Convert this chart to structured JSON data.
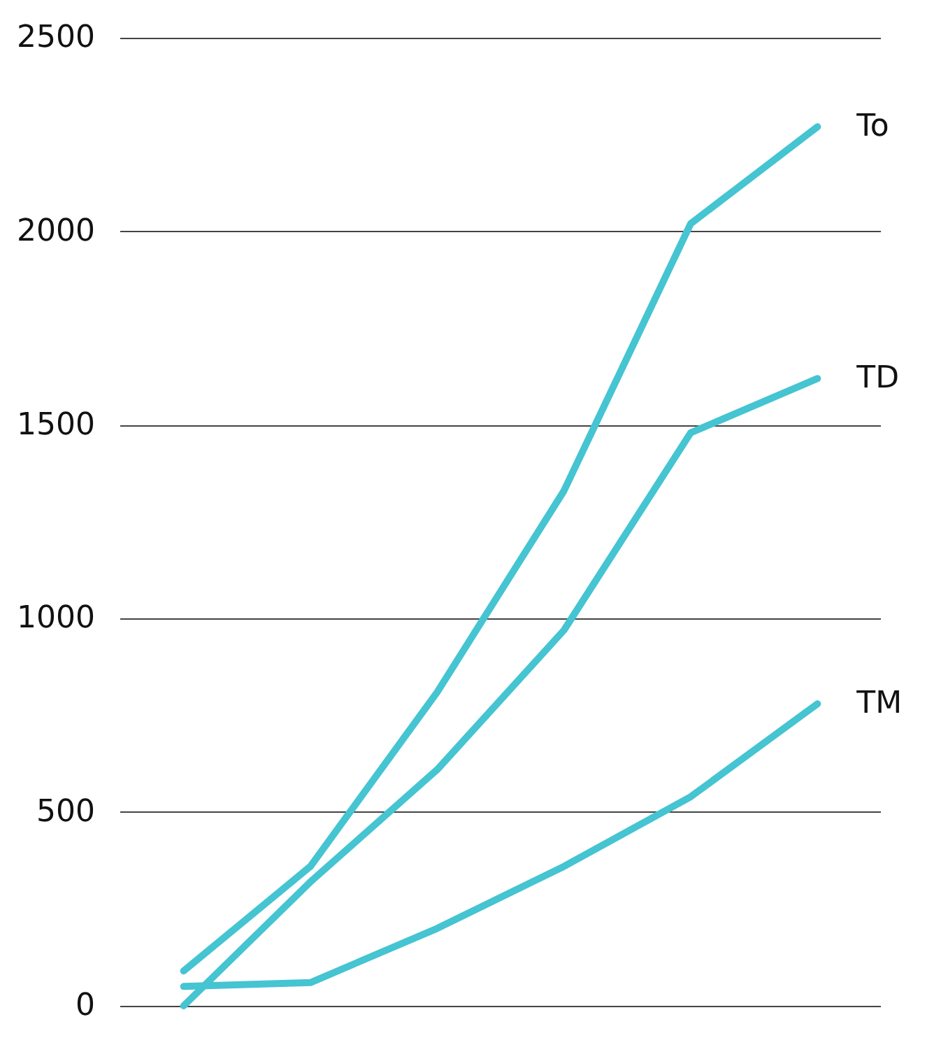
{
  "chart_data": {
    "type": "line",
    "categories": [
      null,
      null,
      null,
      null,
      null,
      null
    ],
    "series": [
      {
        "name": "To",
        "color": "#45c4d2",
        "values": [
          90,
          360,
          810,
          1330,
          2020,
          2270
        ]
      },
      {
        "name": "TD",
        "color": "#45c4d2",
        "values": [
          0,
          320,
          610,
          970,
          1480,
          1620
        ]
      },
      {
        "name": "TM",
        "color": "#45c4d2",
        "values": [
          50,
          60,
          200,
          360,
          540,
          780
        ]
      }
    ],
    "ylim": [
      0,
      2500
    ],
    "yticks": [
      0,
      500,
      1000,
      1500,
      2000,
      2500
    ],
    "grid": "y",
    "legend": false,
    "marker": "none",
    "line_style": "solid"
  }
}
